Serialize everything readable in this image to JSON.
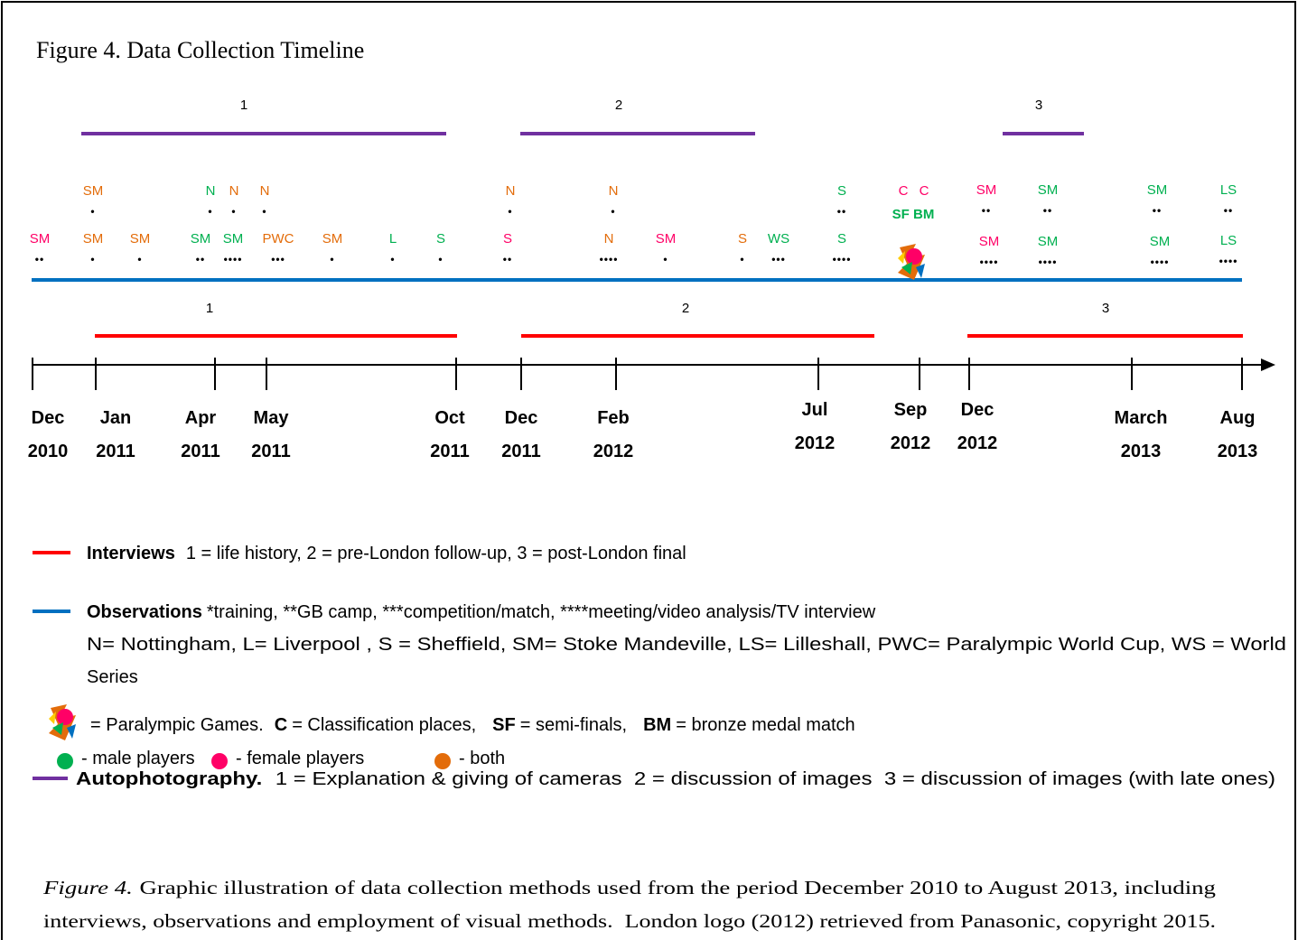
{
  "title": "Figure 4. Data Collection Timeline",
  "autophotography_phases": [
    "1",
    "2",
    "3"
  ],
  "interview_phases": [
    "1",
    "2",
    "3"
  ],
  "observations": {
    "row1": [
      {
        "label": "SM",
        "dots": "•",
        "color": "#e36c0a"
      },
      {
        "label": "N",
        "dots": "•",
        "color": "#00b050"
      },
      {
        "label": "N",
        "dots": "•",
        "color": "#e36c0a"
      },
      {
        "label": "N",
        "dots": "•",
        "color": "#e36c0a"
      },
      {
        "label": "N",
        "dots": "•",
        "color": "#e36c0a"
      },
      {
        "label": "N",
        "dots": "•",
        "color": "#e36c0a"
      },
      {
        "label": "S",
        "dots": "••",
        "color": "#00b050"
      },
      {
        "label": "SM",
        "dots": "••",
        "color": "#ff0066"
      },
      {
        "label": "SM",
        "dots": "••",
        "color": "#00b050"
      },
      {
        "label": "SM",
        "dots": "••",
        "color": "#00b050"
      },
      {
        "label": "LS",
        "dots": "••",
        "color": "#00b050"
      }
    ],
    "row2": [
      {
        "label": "SM",
        "dots": "••",
        "color": "#ff0066"
      },
      {
        "label": "SM",
        "dots": "•",
        "color": "#e36c0a"
      },
      {
        "label": "SM",
        "dots": "•",
        "color": "#e36c0a"
      },
      {
        "label": "SM",
        "dots": "••",
        "color": "#00b050"
      },
      {
        "label": "SM",
        "dots": "••••",
        "color": "#00b050"
      },
      {
        "label": "PWC",
        "dots": "•••",
        "color": "#e36c0a"
      },
      {
        "label": "SM",
        "dots": "•",
        "color": "#e36c0a"
      },
      {
        "label": "L",
        "dots": "•",
        "color": "#00b050"
      },
      {
        "label": "S",
        "dots": "•",
        "color": "#00b050"
      },
      {
        "label": "S",
        "dots": "••",
        "color": "#ff0066"
      },
      {
        "label": "N",
        "dots": "••••",
        "color": "#e36c0a"
      },
      {
        "label": "SM",
        "dots": "•",
        "color": "#ff0066"
      },
      {
        "label": "S",
        "dots": "•",
        "color": "#e36c0a"
      },
      {
        "label": "WS",
        "dots": "•••",
        "color": "#00b050"
      },
      {
        "label": "S",
        "dots": "••••",
        "color": "#00b050"
      },
      {
        "label": "SM",
        "dots": "••••",
        "color": "#ff0066"
      },
      {
        "label": "SM",
        "dots": "••••",
        "color": "#00b050"
      },
      {
        "label": "SM",
        "dots": "••••",
        "color": "#00b050"
      },
      {
        "label": "LS",
        "dots": "••••",
        "color": "#00b050"
      }
    ]
  },
  "games_labels": [
    {
      "label": "C",
      "color": "#ff0066"
    },
    {
      "label": "C",
      "color": "#ff0066"
    },
    {
      "label": "SF BM",
      "color": "#00b050"
    }
  ],
  "dates": [
    {
      "month": "Dec",
      "year": "2010"
    },
    {
      "month": "Jan",
      "year": "2011"
    },
    {
      "month": "Apr",
      "year": "2011"
    },
    {
      "month": "May",
      "year": "2011"
    },
    {
      "month": "Oct",
      "year": "2011"
    },
    {
      "month": "Dec",
      "year": "2011"
    },
    {
      "month": "Feb",
      "year": "2012"
    },
    {
      "month": "Jul",
      "year": "2012"
    },
    {
      "month": "Sep",
      "year": "2012"
    },
    {
      "month": "Dec",
      "year": "2012"
    },
    {
      "month": "March",
      "year": "2013"
    },
    {
      "month": "Aug",
      "year": "2013"
    }
  ],
  "legend": {
    "interviews": {
      "label": "Interviews",
      "text": "1 = life history, 2 = pre-London follow-up, 3 = post-London final"
    },
    "observations": {
      "label": "Observations",
      "text": "*training, **GB camp, ***competition/match, ****meeting/video analysis/TV interview",
      "lines": [
        "N= Nottingham, L= Liverpool , S = Sheffield, SM= Stoke Mandeville, LS= Lilleshall, PWC= Paralympic World Cup, WS = World",
        "Series"
      ]
    },
    "games": {
      "text": "= Paralympic Games.",
      "items": [
        {
          "key": "C",
          "text": "= Classification places,"
        },
        {
          "key": "SF",
          "text": "= semi-finals,"
        },
        {
          "key": "BM",
          "text": "= bronze medal match"
        }
      ]
    },
    "groups": [
      {
        "text": "- male players",
        "color": "#00b050"
      },
      {
        "text": "- female players",
        "color": "#ff0066"
      },
      {
        "text": "- both",
        "color": "#e36c0a"
      }
    ],
    "autophotography": {
      "label": "Autophotography.",
      "text": "1 = Explanation & giving of cameras  2 = discussion of images  3 = discussion of images (with late ones)"
    }
  },
  "caption": {
    "lead": "Figure 4.",
    "lines": [
      "Graphic illustration of data collection methods used from the period December 2010 to August 2013, including",
      "interviews, observations and employment of visual methods.  London logo (2012) retrieved from Panasonic, copyright 2015."
    ]
  }
}
